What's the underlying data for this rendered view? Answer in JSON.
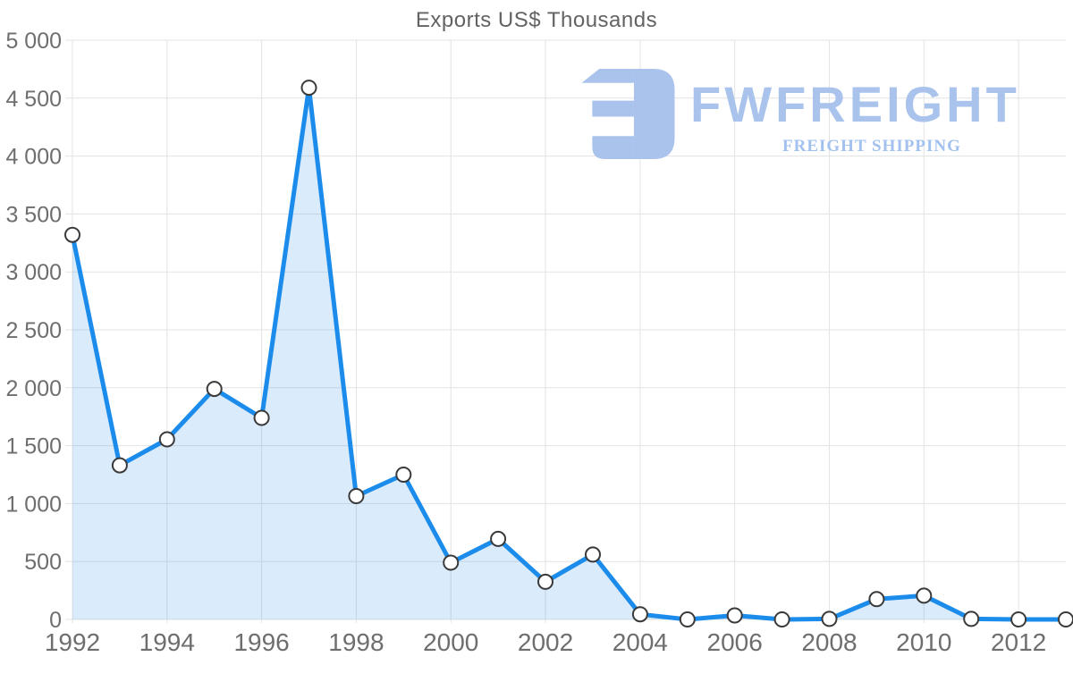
{
  "page": {
    "background": "#ffffff"
  },
  "watermark": {
    "brand": "FWFREIGHT",
    "tagline": "FREIGHT SHIPPING",
    "logo_icon": "fwfreight-logo-mark",
    "brand_color": "#a9c3ec",
    "tagline_color": "#a2c1ef"
  },
  "chart_data": {
    "type": "area",
    "title": "Exports US$ Thousands",
    "x": [
      1992,
      1993,
      1994,
      1995,
      1996,
      1997,
      1998,
      1999,
      2000,
      2001,
      2002,
      2003,
      2004,
      2005,
      2006,
      2007,
      2008,
      2009,
      2010,
      2011,
      2012,
      2013
    ],
    "series": [
      {
        "name": "Exports US$ Thousands",
        "values": [
          3320,
          1330,
          1555,
          1990,
          1740,
          4590,
          1065,
          1250,
          490,
          695,
          325,
          560,
          45,
          0,
          35,
          0,
          5,
          175,
          205,
          5,
          0,
          0
        ]
      }
    ],
    "xlabel": "",
    "ylabel": "",
    "ylim": [
      0,
      5000
    ],
    "y_tick_step": 500,
    "y_tick_labels": [
      "0",
      "500",
      "1 000",
      "1 500",
      "2 000",
      "2 500",
      "3 000",
      "3 500",
      "4 000",
      "4 500",
      "5 000"
    ],
    "x_tick_labels": [
      "1992",
      "1994",
      "1996",
      "1998",
      "2000",
      "2002",
      "2004",
      "2006",
      "2008",
      "2010",
      "2012"
    ],
    "grid": true,
    "legend": "none",
    "marker": "circle",
    "colors": {
      "line": "#1b8ceb",
      "area_fill": "#1982e6",
      "area_fill_opacity": 0.16,
      "marker_fill": "#ffffff",
      "marker_stroke": "#3a3a3a",
      "grid": "#e3e3e3",
      "axis_text": "#6e6e6e",
      "title_text": "#636363"
    }
  }
}
